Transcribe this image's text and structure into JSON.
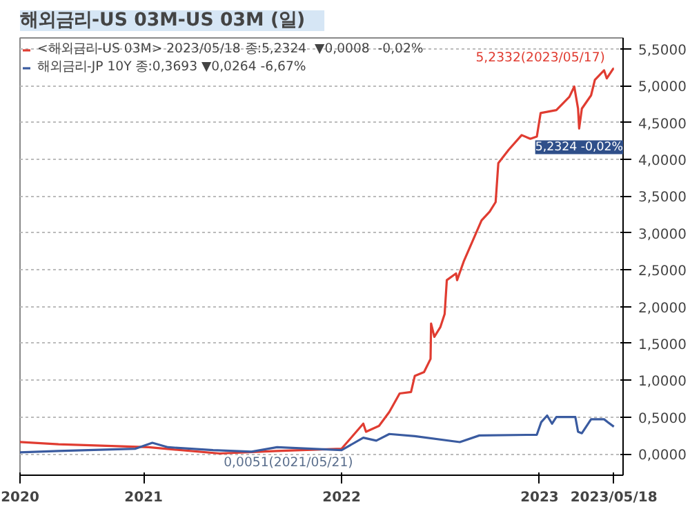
{
  "chart_data": {
    "type": "line",
    "title": "해외금리-US    03M-US 03M (일)",
    "series": [
      {
        "name": "<해외금리-US 03M> 2023/05/18 종:5,2324  ▼0,0008  -0,02%",
        "color": "#e03c31",
        "x": [
          "2020-05-18",
          "2020-07-28",
          "2021-01-10",
          "2021-05-21",
          "2021-09-04",
          "2022-01-01",
          "2022-02-10",
          "2022-02-15",
          "2022-03-11",
          "2022-03-30",
          "2022-04-18",
          "2022-05-09",
          "2022-05-16",
          "2022-06-02",
          "2022-06-14",
          "2022-06-15",
          "2022-06-21",
          "2022-07-02",
          "2022-07-10",
          "2022-07-14",
          "2022-07-31",
          "2022-08-02",
          "2022-08-14",
          "2022-08-31",
          "2022-09-16",
          "2022-10-01",
          "2022-10-12",
          "2022-10-17",
          "2022-11-05",
          "2022-11-29",
          "2022-12-15",
          "2022-12-27",
          "2023-01-03",
          "2023-02-01",
          "2023-02-25",
          "2023-03-06",
          "2023-03-13",
          "2023-03-15",
          "2023-03-20",
          "2023-04-06",
          "2023-04-13",
          "2023-04-30",
          "2023-05-05",
          "2023-05-17",
          "2023-05-18"
        ],
        "values": [
          0.16,
          0.13,
          0.09,
          0.0051,
          0.04,
          0.07,
          0.41,
          0.3,
          0.38,
          0.57,
          0.82,
          0.84,
          1.06,
          1.11,
          1.29,
          1.77,
          1.59,
          1.72,
          1.9,
          2.36,
          2.45,
          2.36,
          2.61,
          2.9,
          3.17,
          3.29,
          3.42,
          3.95,
          4.13,
          4.33,
          4.28,
          4.31,
          4.63,
          4.67,
          4.85,
          4.99,
          4.69,
          4.42,
          4.69,
          4.87,
          5.08,
          5.21,
          5.1,
          5.2332,
          5.2324
        ]
      },
      {
        "name": "해외금리-JP 10Y 종:0,3693 ▼0,0264 -6,67%",
        "color": "#3a5ba0",
        "x": [
          "2020-05-18",
          "2020-07-28",
          "2020-12-17",
          "2021-01-17",
          "2021-02-15",
          "2021-05-09",
          "2021-07-19",
          "2021-09-04",
          "2022-01-01",
          "2022-02-10",
          "2022-03-06",
          "2022-03-30",
          "2022-05-16",
          "2022-08-07",
          "2022-09-12",
          "2022-12-27",
          "2023-01-04",
          "2023-01-15",
          "2023-01-24",
          "2023-02-01",
          "2023-03-08",
          "2023-03-13",
          "2023-03-20",
          "2023-04-06",
          "2023-04-30",
          "2023-05-07",
          "2023-05-18"
        ],
        "values": [
          0.02,
          0.04,
          0.07,
          0.15,
          0.09,
          0.05,
          0.03,
          0.09,
          0.05,
          0.22,
          0.18,
          0.27,
          0.24,
          0.16,
          0.25,
          0.26,
          0.43,
          0.52,
          0.41,
          0.5,
          0.5,
          0.3,
          0.28,
          0.47,
          0.47,
          0.43,
          0.3693
        ]
      }
    ],
    "annotations": [
      {
        "text": "5,2332(2023/05/17)",
        "x": "2023-05-17",
        "y": 5.2332
      },
      {
        "text": "0,0051(2021/05/21)",
        "x": "2021-05-21",
        "y": 0.0051
      },
      "5,2324 -0,02%"
    ],
    "xlim": [
      "2020-05-18",
      "2023-06-04"
    ],
    "xticks": [
      {
        "value": "2020-05-18",
        "label": "2020"
      },
      {
        "value": "2021-01-01",
        "label": "2021"
      },
      {
        "value": "2022-01-01",
        "label": "2022"
      },
      {
        "value": "2023-01-01",
        "label": "2023"
      },
      {
        "value": "2023-05-18",
        "label": "2023/05/18"
      }
    ],
    "ylim": [
      -0.29,
      5.65
    ],
    "yticks": [
      {
        "value": 0,
        "label": "0,0000"
      },
      {
        "value": 0.5,
        "label": "0,5000"
      },
      {
        "value": 1,
        "label": "1,0000"
      },
      {
        "value": 1.5,
        "label": "1,5000"
      },
      {
        "value": 2,
        "label": "2,0000"
      },
      {
        "value": 2.5,
        "label": "2,5000"
      },
      {
        "value": 3,
        "label": "3,0000"
      },
      {
        "value": 3.5,
        "label": "3,5000"
      },
      {
        "value": 4,
        "label": "4,0000"
      },
      {
        "value": 4.5,
        "label": "4,5000"
      },
      {
        "value": 5,
        "label": "5,0000"
      },
      {
        "value": 5.5,
        "label": "5,5000"
      }
    ],
    "grid": true,
    "legend": "top left",
    "line_style": "solid",
    "marker": "none"
  }
}
